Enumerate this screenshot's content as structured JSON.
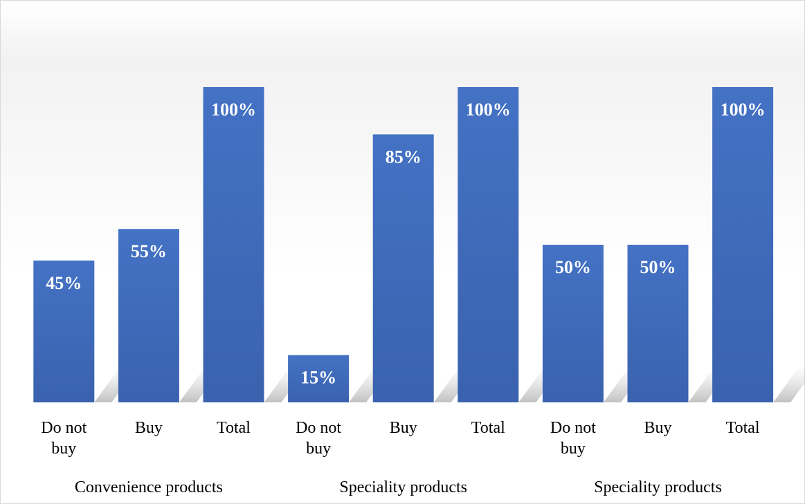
{
  "chart_data": {
    "type": "bar",
    "title": "",
    "xlabel": "",
    "ylabel": "",
    "ylim": [
      0,
      100
    ],
    "grid": false,
    "legend": "none",
    "bar_color": "#4472C4",
    "groups": [
      {
        "label": "Convenience products",
        "bars": [
          {
            "category": "Do not buy",
            "category_lines": [
              "Do not",
              "buy"
            ],
            "value": 45,
            "label": "45%"
          },
          {
            "category": "Buy",
            "category_lines": [
              "Buy"
            ],
            "value": 55,
            "label": "55%"
          },
          {
            "category": "Total",
            "category_lines": [
              "Total"
            ],
            "value": 100,
            "label": "100%"
          }
        ]
      },
      {
        "label": "Speciality products",
        "bars": [
          {
            "category": "Do not buy",
            "category_lines": [
              "Do not",
              "buy"
            ],
            "value": 15,
            "label": "15%"
          },
          {
            "category": "Buy",
            "category_lines": [
              "Buy"
            ],
            "value": 85,
            "label": "85%"
          },
          {
            "category": "Total",
            "category_lines": [
              "Total"
            ],
            "value": 100,
            "label": "100%"
          }
        ]
      },
      {
        "label": "Speciality products",
        "bars": [
          {
            "category": "Do not buy",
            "category_lines": [
              "Do not",
              "buy"
            ],
            "value": 50,
            "label": "50%"
          },
          {
            "category": "Buy",
            "category_lines": [
              "Buy"
            ],
            "value": 50,
            "label": "50%"
          },
          {
            "category": "Total",
            "category_lines": [
              "Total"
            ],
            "value": 100,
            "label": "100%"
          }
        ]
      }
    ]
  }
}
